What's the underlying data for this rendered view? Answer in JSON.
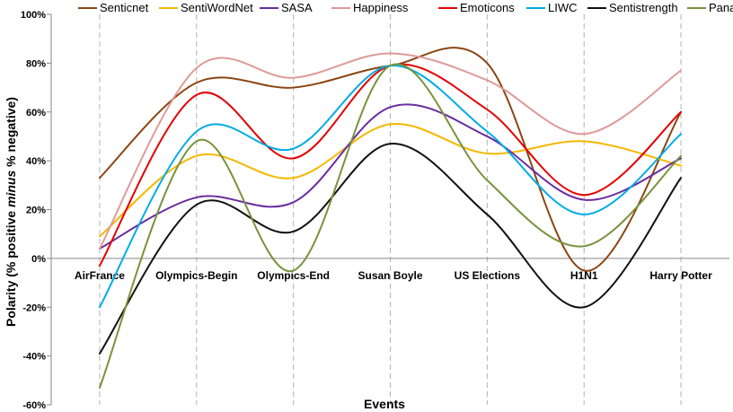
{
  "chart_data": {
    "type": "line",
    "smooth": true,
    "xlabel": "Events",
    "ylabel": {
      "before": "Polarity (% positive ",
      "emph": "minus",
      "after": " % negative)"
    },
    "ylim": [
      -60,
      100
    ],
    "yticks": [
      -60,
      -40,
      -20,
      0,
      20,
      40,
      60,
      80,
      100
    ],
    "ytick_labels": [
      "-60%",
      "-40%",
      "-20%",
      "0%",
      "20%",
      "40%",
      "60%",
      "80%",
      "100%"
    ],
    "categories": [
      "AirFrance",
      "Olympics-Begin",
      "Olympics-End",
      "Susan Boyle",
      "US Elections",
      "H1N1",
      "Harry Potter"
    ],
    "series": [
      {
        "name": "Senticnet",
        "color": "#8B4513",
        "values": [
          33,
          72,
          70,
          79,
          80,
          -5,
          60
        ]
      },
      {
        "name": "SentiWordNet",
        "color": "#F5B800",
        "values": [
          9,
          42,
          33,
          55,
          43,
          48,
          38
        ]
      },
      {
        "name": "SASA",
        "color": "#6A2CA0",
        "values": [
          4,
          25,
          23,
          62,
          50,
          24,
          41
        ]
      },
      {
        "name": "Happiness",
        "color": "#DE9A9A",
        "values": [
          4,
          78,
          74,
          84,
          73,
          51,
          77
        ]
      },
      {
        "name": "Emoticons",
        "color": "#E50000",
        "values": [
          -3,
          67,
          41,
          79,
          61,
          26,
          60
        ]
      },
      {
        "name": "LIWC",
        "color": "#00ACE6",
        "values": [
          -20,
          52,
          45,
          79,
          52,
          18,
          51
        ]
      },
      {
        "name": "Sentistrength",
        "color": "#111111",
        "values": [
          -39,
          22,
          11,
          47,
          18,
          -20,
          33
        ]
      },
      {
        "name": "Panas-t",
        "color": "#77933C",
        "values": [
          -53,
          48,
          -5,
          79,
          32,
          5,
          42
        ]
      }
    ]
  }
}
